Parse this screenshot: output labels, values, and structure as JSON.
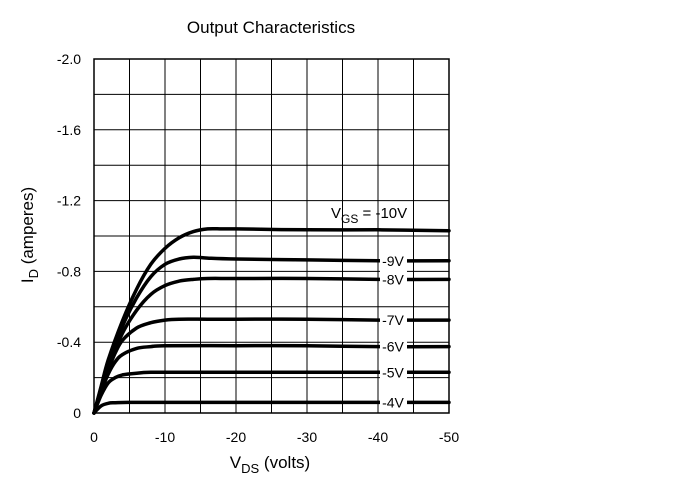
{
  "chart_data": {
    "type": "line",
    "title": "Output Characteristics",
    "xlabel": {
      "main": "V",
      "sub": "DS",
      "rest": " (volts)"
    },
    "ylabel": {
      "main": "I",
      "sub": "D",
      "rest": " (amperes)"
    },
    "xlim": [
      0,
      -50
    ],
    "ylim": [
      0,
      -2.0
    ],
    "x_tick_labels": [
      "0",
      "-10",
      "-20",
      "-30",
      "-40",
      "-50"
    ],
    "y_tick_labels": [
      "0",
      "-0.4",
      "-0.8",
      "-1.2",
      "-1.6",
      "-2.0"
    ],
    "grid": true,
    "legend_title": {
      "main": "V",
      "sub": "GS",
      "rest": " = -10V"
    },
    "series": [
      {
        "name": "-10V",
        "id": "vgs10",
        "label": "",
        "x": [
          0,
          -1,
          -2,
          -4,
          -6,
          -8,
          -10,
          -12,
          -14,
          -16,
          -18,
          -20,
          -30,
          -40,
          -50
        ],
        "y": [
          0,
          -0.15,
          -0.3,
          -0.52,
          -0.7,
          -0.84,
          -0.93,
          -0.99,
          -1.025,
          -1.04,
          -1.04,
          -1.04,
          -1.035,
          -1.035,
          -1.03
        ]
      },
      {
        "name": "-9V",
        "id": "vgs9",
        "label": "-9V",
        "x": [
          0,
          -1,
          -2,
          -4,
          -6,
          -8,
          -10,
          -12,
          -14,
          -16,
          -20,
          -30,
          -40,
          -50
        ],
        "y": [
          0,
          -0.14,
          -0.28,
          -0.49,
          -0.65,
          -0.77,
          -0.84,
          -0.87,
          -0.88,
          -0.875,
          -0.87,
          -0.865,
          -0.86,
          -0.86
        ]
      },
      {
        "name": "-8V",
        "id": "vgs8",
        "label": "-8V",
        "x": [
          0,
          -1,
          -2,
          -4,
          -6,
          -8,
          -10,
          -12,
          -14,
          -16,
          -20,
          -30,
          -40,
          -50
        ],
        "y": [
          0,
          -0.13,
          -0.26,
          -0.45,
          -0.58,
          -0.67,
          -0.72,
          -0.745,
          -0.755,
          -0.76,
          -0.76,
          -0.76,
          -0.755,
          -0.755
        ]
      },
      {
        "name": "-7V",
        "id": "vgs7",
        "label": "-7V",
        "x": [
          0,
          -1,
          -2,
          -3,
          -4,
          -6,
          -8,
          -10,
          -12,
          -16,
          -20,
          -30,
          -40,
          -50
        ],
        "y": [
          0,
          -0.12,
          -0.24,
          -0.34,
          -0.41,
          -0.48,
          -0.51,
          -0.525,
          -0.53,
          -0.53,
          -0.53,
          -0.53,
          -0.525,
          -0.525
        ]
      },
      {
        "name": "-6V",
        "id": "vgs6",
        "label": "-6V",
        "x": [
          0,
          -1,
          -2,
          -3,
          -4,
          -6,
          -8,
          -10,
          -20,
          -30,
          -40,
          -50
        ],
        "y": [
          0,
          -0.12,
          -0.22,
          -0.29,
          -0.33,
          -0.365,
          -0.375,
          -0.38,
          -0.38,
          -0.38,
          -0.375,
          -0.375
        ]
      },
      {
        "name": "-5V",
        "id": "vgs5",
        "label": "-5V",
        "x": [
          0,
          -1,
          -2,
          -3,
          -4,
          -6,
          -8,
          -10,
          -20,
          -30,
          -40,
          -50
        ],
        "y": [
          0,
          -0.1,
          -0.17,
          -0.2,
          -0.215,
          -0.225,
          -0.23,
          -0.23,
          -0.23,
          -0.23,
          -0.23,
          -0.23
        ]
      },
      {
        "name": "-4V",
        "id": "vgs4",
        "label": "-4V",
        "x": [
          0,
          -1,
          -2,
          -3,
          -5,
          -10,
          -20,
          -30,
          -40,
          -50
        ],
        "y": [
          0,
          -0.04,
          -0.055,
          -0.058,
          -0.06,
          -0.06,
          -0.06,
          -0.06,
          -0.06,
          -0.06
        ]
      }
    ]
  },
  "colors": {
    "line": "#000000",
    "grid": "#000000",
    "background": "#ffffff"
  }
}
